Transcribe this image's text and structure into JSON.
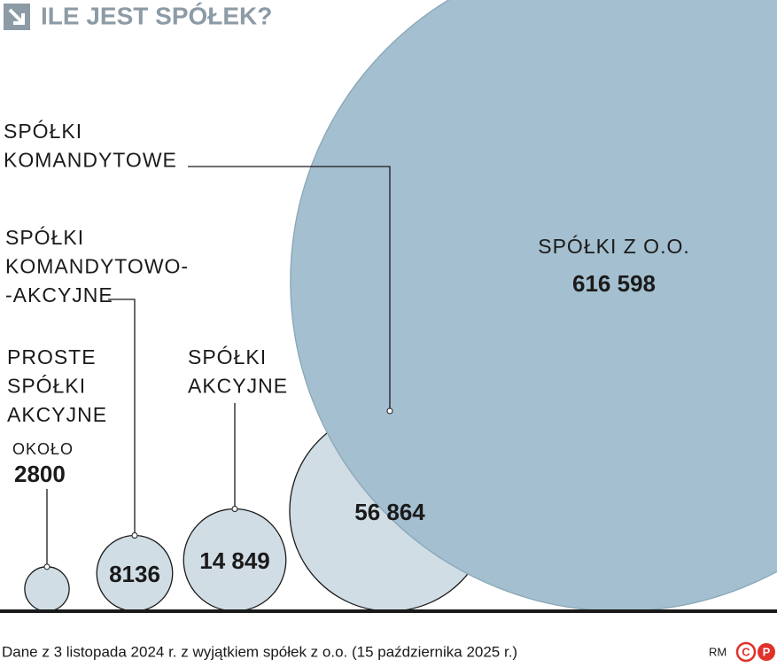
{
  "chart_data": {
    "type": "bubble",
    "title": "ILE JEST SPÓŁEK?",
    "categories": [
      [
        "PROSTE",
        "SPÓŁKI",
        "AKCYJNE"
      ],
      [
        "SPÓŁKI",
        "KOMANDYTOWO-",
        "-AKCYJNE"
      ],
      [
        "SPÓŁKI",
        "AKCYJNE"
      ],
      [
        "SPÓŁKI",
        "KOMANDYTOWE"
      ],
      [
        "SPÓŁKI Z O.O."
      ]
    ],
    "values": [
      2800,
      8136,
      14849,
      56864,
      616598
    ],
    "value_labels": [
      "2800",
      "8136",
      "14 849",
      "56 864",
      "616 598"
    ],
    "annotation": "OKOŁO",
    "colors": [
      "#d0dde4",
      "#d0dde4",
      "#d0dde4",
      "#d0dde4",
      "#a4bfcf"
    ],
    "note": "Dane z 3 listopada 2024 r. z wyjątkiem spółek z o.o. (15 października 2025 r.)",
    "credit": "RM",
    "logo": [
      "C",
      "P"
    ]
  }
}
